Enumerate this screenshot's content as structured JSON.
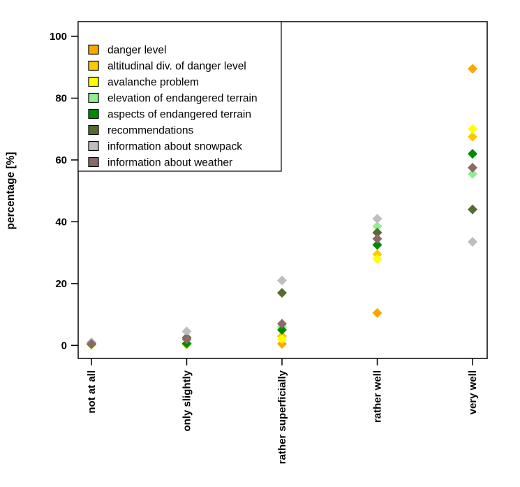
{
  "figure": {
    "background": "#FFFFFF",
    "axis_color": "#000000",
    "legend_border_color": "#000000"
  },
  "chart_data": {
    "type": "scatter",
    "marker": "diamond",
    "title": "",
    "xlabel": "",
    "ylabel": "percentage [%]",
    "ylim": [
      0,
      100
    ],
    "yticks": [
      0,
      20,
      40,
      60,
      80,
      100
    ],
    "grid": false,
    "legend_position": "top-left",
    "categories": [
      "not at all",
      "only slightly",
      "rather superficially",
      "rather well",
      "very well"
    ],
    "series": [
      {
        "name": "danger level",
        "color": "#FFA500",
        "values": [
          0.2,
          0.3,
          0.5,
          10.5,
          89.5
        ]
      },
      {
        "name": "altitudinal div. of danger level",
        "color": "#FFC800",
        "values": [
          0.2,
          0.3,
          3,
          29.5,
          67.5
        ]
      },
      {
        "name": "avalanche problem",
        "color": "#FFFF00",
        "values": [
          0.2,
          0.4,
          2,
          28,
          70
        ]
      },
      {
        "name": "elevation of endangered terrain",
        "color": "#90EE90",
        "values": [
          0.3,
          0.5,
          6,
          38.5,
          55.5
        ]
      },
      {
        "name": "aspects of endangered terrain",
        "color": "#008B00",
        "values": [
          0.4,
          0.6,
          5,
          32.5,
          62
        ]
      },
      {
        "name": "recommendations",
        "color": "#556B2F",
        "values": [
          0.8,
          2.5,
          17,
          36.5,
          44
        ]
      },
      {
        "name": "information about snowpack",
        "color": "#BEBEBE",
        "values": [
          1,
          4.5,
          21,
          41,
          33.5
        ]
      },
      {
        "name": "information about weather",
        "color": "#8B6969",
        "values": [
          0.5,
          2,
          7,
          34.5,
          57.5
        ]
      }
    ]
  }
}
